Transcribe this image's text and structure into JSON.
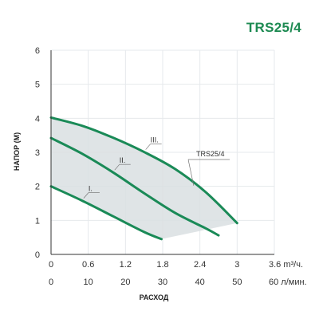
{
  "chart_data": {
    "type": "line",
    "title": "TRS25/4",
    "ylabel": "НАПОР (М)",
    "xlabel": "РАСХОД",
    "ylim": [
      0,
      6
    ],
    "yticks": [
      "0",
      "1",
      "2",
      "3",
      "4",
      "5",
      "6"
    ],
    "xlim": [
      0,
      3.6
    ],
    "x_top_ticks": [
      "0",
      "0.6",
      "1.2",
      "1.8",
      "2.4",
      "3",
      "3.6 m³/ч."
    ],
    "x_bottom_ticks": [
      "0",
      "10",
      "20",
      "30",
      "40",
      "50",
      "60 л/мин."
    ],
    "grid": true,
    "envelope_label": "TRS25/4",
    "colors": {
      "curve": "#1a8a57",
      "envelope": "#d9dfe2",
      "grid": "#e6e9ec",
      "axis": "#333333"
    },
    "series": [
      {
        "name": "I.",
        "x": [
          0,
          0.5,
          1.0,
          1.5,
          1.78
        ],
        "y": [
          2.0,
          1.58,
          1.12,
          0.66,
          0.45
        ]
      },
      {
        "name": "II.",
        "x": [
          0,
          0.5,
          1.0,
          1.5,
          2.0,
          2.5,
          2.7
        ],
        "y": [
          3.42,
          2.96,
          2.41,
          1.8,
          1.22,
          0.76,
          0.56
        ]
      },
      {
        "name": "III.",
        "x": [
          0,
          0.5,
          1.0,
          1.5,
          2.0,
          2.5,
          3.0
        ],
        "y": [
          4.02,
          3.78,
          3.43,
          3.01,
          2.51,
          1.82,
          0.92
        ]
      }
    ]
  }
}
